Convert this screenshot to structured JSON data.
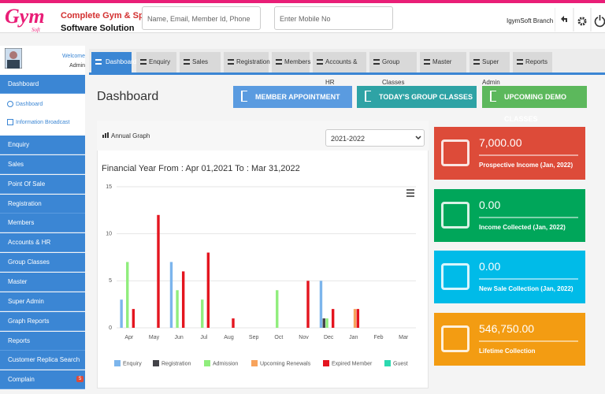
{
  "header": {
    "logo": "Gym",
    "logo_sub": "Soft",
    "title": "Complete Gym & Spa",
    "subtitle": "Software Solution",
    "search_placeholder": "Name, Email, Member Id, Phone",
    "mobile_placeholder": "Enter Mobile No",
    "branch": "IgymSoft Branch"
  },
  "sidebar": {
    "welcome": "Welcome",
    "user": "Admin",
    "menu_header": "Dashboard",
    "submenu": [
      "Dashboard",
      "Information Broadcast"
    ],
    "items": [
      "Enquiry",
      "Sales",
      "Point Of Sale",
      "Registration",
      "Members",
      "Accounts & HR",
      "Group Classes",
      "Master",
      "Super Admin",
      "Graph Reports",
      "Reports",
      "Customer Replica Search",
      "Complain"
    ],
    "complain_badge": "5"
  },
  "tabs": [
    "Dashboard",
    "Enquiry",
    "Sales",
    "Registration",
    "Members",
    "Accounts & HR",
    "Group Classes",
    "Master",
    "Super Admin",
    "Reports"
  ],
  "page_title": "Dashboard",
  "buttons": [
    {
      "label": "MEMBER APPOINTMENT",
      "color": "#5a9be0"
    },
    {
      "label": "TODAY'S GROUP CLASSES",
      "color": "#2ea3a5"
    },
    {
      "label": "UPCOMING DEMO CLASSES",
      "color": "#5cb85c"
    }
  ],
  "chart": {
    "type": "bar",
    "title": "Annual Graph",
    "year": "2021-2022",
    "subtitle": "Financial Year From : Apr 01,2021 To : Mar 31,2022",
    "categories": [
      "Apr",
      "May",
      "Jun",
      "Jul",
      "Aug",
      "Sep",
      "Oct",
      "Nov",
      "Dec",
      "Jan",
      "Feb",
      "Mar"
    ],
    "series": [
      {
        "name": "Enquiry",
        "color": "#7cb5ec",
        "values": [
          3,
          0,
          7,
          0,
          0,
          0,
          0,
          0,
          5,
          0,
          0,
          0
        ]
      },
      {
        "name": "Registration",
        "color": "#434348",
        "values": [
          0,
          0,
          0,
          0,
          0,
          0,
          0,
          0,
          1,
          0,
          0,
          0
        ]
      },
      {
        "name": "Admission",
        "color": "#90ed7d",
        "values": [
          7,
          0,
          4,
          3,
          0,
          0,
          4,
          0,
          1,
          0,
          0,
          0
        ]
      },
      {
        "name": "Upcoming Renewals",
        "color": "#f7a35c",
        "values": [
          0,
          0,
          0,
          0,
          0,
          0,
          0,
          0,
          0,
          2,
          0,
          0
        ]
      },
      {
        "name": "Expired Member",
        "color": "#e4151f",
        "values": [
          2,
          12,
          6,
          8,
          1,
          0,
          0,
          5,
          2,
          2,
          0,
          0
        ]
      },
      {
        "name": "Guest",
        "color": "#2bd9b0",
        "values": [
          0,
          0,
          0,
          0,
          0,
          0,
          0,
          0,
          0,
          0,
          0,
          0
        ]
      }
    ],
    "ylim": [
      0,
      15
    ],
    "yticks": [
      0,
      5,
      10,
      15
    ],
    "grid": true
  },
  "cards": [
    {
      "value": "7,000.00",
      "label": "Prospective Income (Jan, 2022)",
      "color": "#dd4b39"
    },
    {
      "value": "0.00",
      "label": "Income Collected (Jan, 2022)",
      "color": "#00a65a"
    },
    {
      "value": "0.00",
      "label": "New Sale Collection (Jan, 2022)",
      "color": "#00bbe8"
    },
    {
      "value": "546,750.00",
      "label": "Lifetime Collection",
      "color": "#f39c12"
    }
  ]
}
